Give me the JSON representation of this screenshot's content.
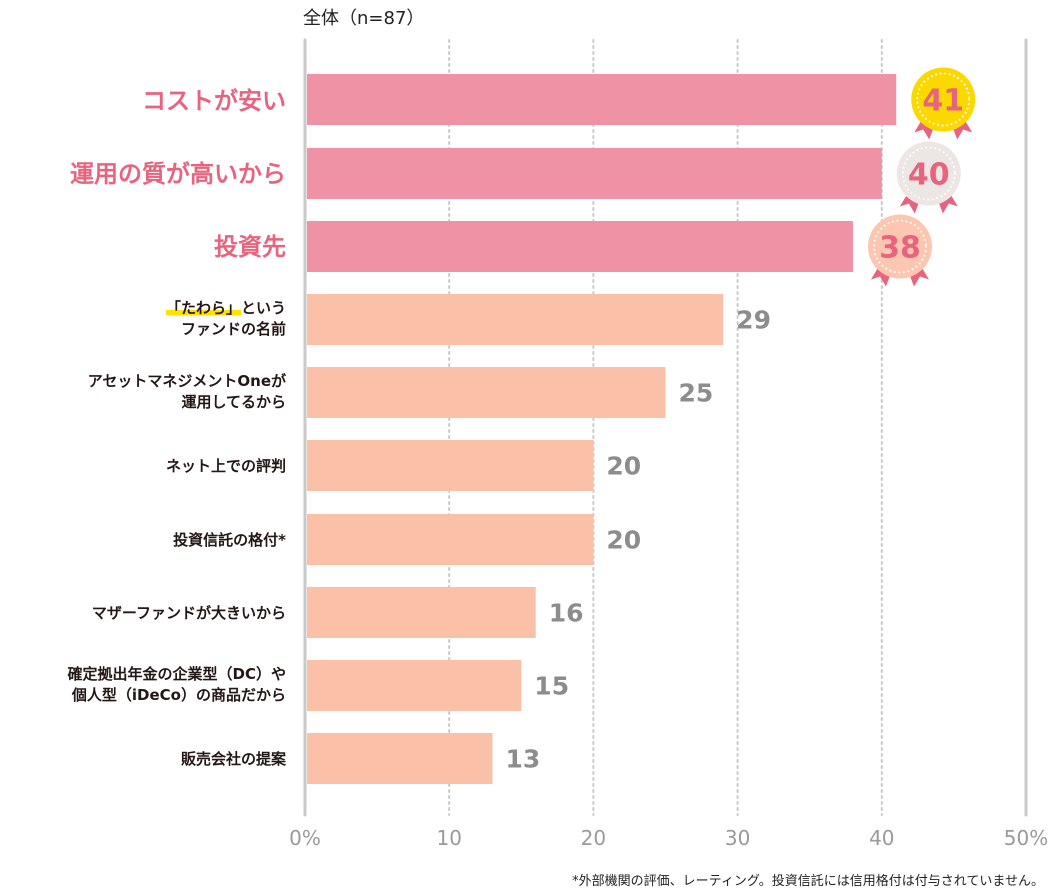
{
  "chart_data": {
    "type": "bar",
    "orientation": "horizontal",
    "title": "",
    "subtitle": "全体（n=87）",
    "xlabel": "",
    "ylabel": "",
    "xlim": [
      0,
      50
    ],
    "x_ticks": [
      "0%",
      "10",
      "20",
      "30",
      "40",
      "50%"
    ],
    "x_tick_values": [
      0,
      10,
      20,
      30,
      40,
      50
    ],
    "grid": true,
    "categories": [
      "コストが安い",
      "運用の質が高いから",
      "投資先",
      "「たわら」という\nファンドの名前",
      "アセットマネジメントOneが\n運用してるから",
      "ネット上での評判",
      "投資信託の格付*",
      "マザーファンドが大きいから",
      "確定拠出年金の企業型（DC）や\n個人型（iDeCo）の商品だから",
      "販売会社の提案"
    ],
    "values": [
      41,
      40,
      38,
      29,
      25,
      20,
      20,
      16,
      15,
      13
    ],
    "units": "%",
    "top_ranked": [
      {
        "rank": 1,
        "value": 41,
        "badge": "gold"
      },
      {
        "rank": 2,
        "value": 40,
        "badge": "silver"
      },
      {
        "rank": 3,
        "value": 38,
        "badge": "bronze"
      }
    ],
    "footnote": "*外部機関の評価、レーティング。投資信託には信用格付は付与されていません。"
  },
  "labels": {
    "cat0": "コストが安い",
    "cat1": "運用の質が高いから",
    "cat2": "投資先",
    "cat3_hl": "「たわら」",
    "cat3_rest": "という",
    "cat3_line2": "ファンドの名前",
    "cat4_line1": "アセットマネジメントOneが",
    "cat4_line2": "運用してるから",
    "cat5": "ネット上での評判",
    "cat6": "投資信託の格付*",
    "cat7": "マザーファンドが大きいから",
    "cat8_line1": "確定拠出年金の企業型（DC）や",
    "cat8_line2": "個人型（iDeCo）の商品だから",
    "cat9": "販売会社の提案"
  },
  "colors": {
    "top_bar": "#f092a5",
    "other_bar": "#fbc1a8",
    "top_label": "#e8647e",
    "value_label": "#8c8c8c",
    "axis": "#c9c9c9",
    "grid": "#c9c9c9",
    "badge_gold": "#fbd800",
    "badge_silver": "#ece6e4",
    "badge_bronze": "#fcc6b0",
    "ribbon": "#e8647e",
    "badge_text": "#e8647e"
  }
}
